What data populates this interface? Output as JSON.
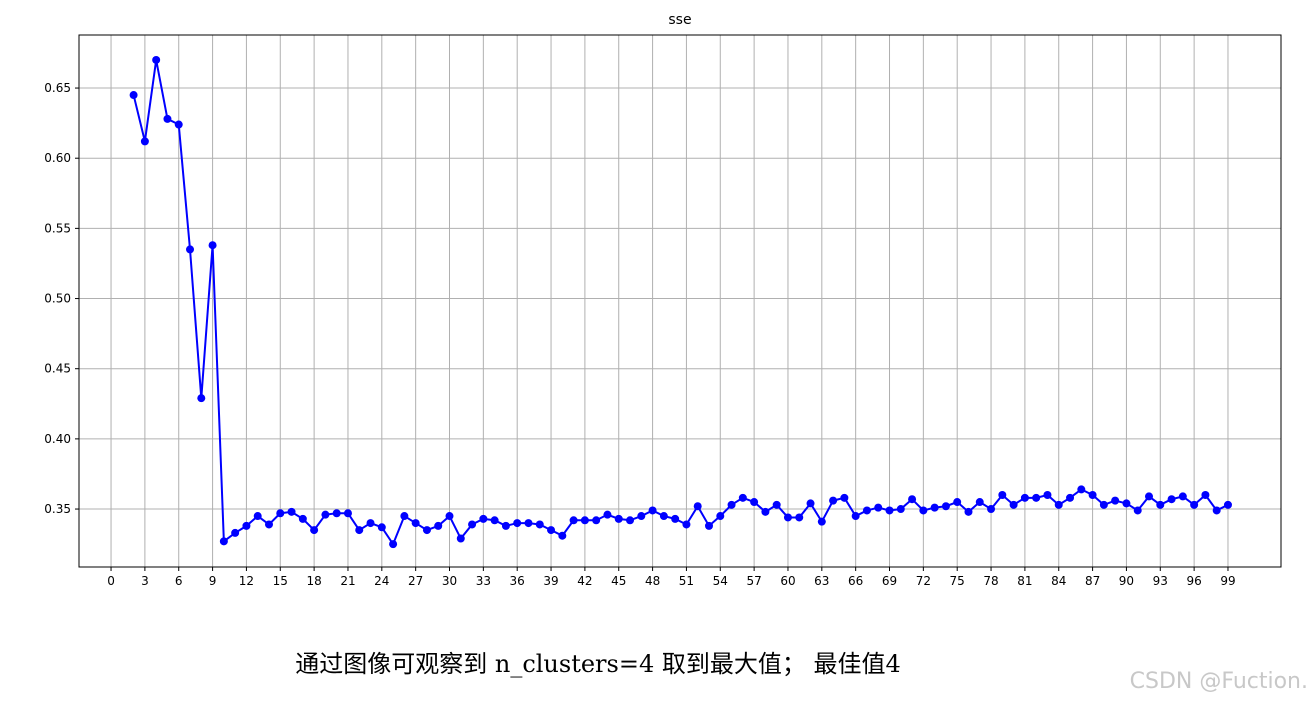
{
  "chart_data": {
    "type": "line",
    "title": "sse",
    "x": [
      2,
      3,
      4,
      5,
      6,
      7,
      8,
      9,
      10,
      11,
      12,
      13,
      14,
      15,
      16,
      17,
      18,
      19,
      20,
      21,
      22,
      23,
      24,
      25,
      26,
      27,
      28,
      29,
      30,
      31,
      32,
      33,
      34,
      35,
      36,
      37,
      38,
      39,
      40,
      41,
      42,
      43,
      44,
      45,
      46,
      47,
      48,
      49,
      50,
      51,
      52,
      53,
      54,
      55,
      56,
      57,
      58,
      59,
      60,
      61,
      62,
      63,
      64,
      65,
      66,
      67,
      68,
      69,
      70,
      71,
      72,
      73,
      74,
      75,
      76,
      77,
      78,
      79,
      80,
      81,
      82,
      83,
      84,
      85,
      86,
      87,
      88,
      89,
      90,
      91,
      92,
      93,
      94,
      95,
      96,
      97,
      98,
      99
    ],
    "series": [
      {
        "color": "#0000ff",
        "values": [
          0.645,
          0.612,
          0.67,
          0.628,
          0.624,
          0.535,
          0.429,
          0.538,
          0.327,
          0.333,
          0.338,
          0.345,
          0.339,
          0.347,
          0.348,
          0.343,
          0.335,
          0.346,
          0.347,
          0.347,
          0.335,
          0.34,
          0.337,
          0.325,
          0.345,
          0.34,
          0.335,
          0.338,
          0.345,
          0.329,
          0.339,
          0.343,
          0.342,
          0.338,
          0.34,
          0.34,
          0.339,
          0.335,
          0.331,
          0.342,
          0.342,
          0.342,
          0.346,
          0.343,
          0.342,
          0.345,
          0.349,
          0.345,
          0.343,
          0.339,
          0.352,
          0.338,
          0.345,
          0.353,
          0.358,
          0.355,
          0.348,
          0.353,
          0.344,
          0.344,
          0.354,
          0.341,
          0.356,
          0.358,
          0.345,
          0.349,
          0.351,
          0.349,
          0.35,
          0.357,
          0.349,
          0.351,
          0.352,
          0.355,
          0.348,
          0.355,
          0.35,
          0.36,
          0.353,
          0.358,
          0.358,
          0.36,
          0.353,
          0.358,
          0.364,
          0.36,
          0.353,
          0.356,
          0.354,
          0.349,
          0.359,
          0.353,
          0.357,
          0.359,
          0.353,
          0.36,
          0.349,
          0.353
        ]
      }
    ],
    "xlim": [
      -2.84,
      103.7
    ],
    "ylim": [
      0.3087,
      0.6878
    ],
    "xticks": [
      0,
      3,
      6,
      9,
      12,
      15,
      18,
      21,
      24,
      27,
      30,
      33,
      36,
      39,
      42,
      45,
      48,
      51,
      54,
      57,
      60,
      63,
      66,
      69,
      72,
      75,
      78,
      81,
      84,
      87,
      90,
      93,
      96,
      99
    ],
    "yticks": [
      0.35,
      {
        "value": 0.4,
        "label": "0.40"
      },
      0.45,
      {
        "value": 0.5,
        "label": "0.50"
      },
      0.55,
      {
        "value": 0.6,
        "label": "0.60"
      },
      0.65
    ],
    "grid": true
  },
  "caption": "通过图像可观察到 n_clusters=4 取到最大值； 最佳值4",
  "watermark": "CSDN @Fuction."
}
